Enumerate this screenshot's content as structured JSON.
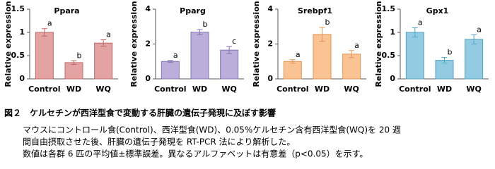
{
  "chart_data": [
    {
      "type": "bar",
      "title": "Ppara",
      "y_label": "Relative expression",
      "categories": [
        "Control",
        "WD",
        "WQ"
      ],
      "values": [
        1.0,
        0.35,
        0.77
      ],
      "errors": [
        0.08,
        0.04,
        0.07
      ],
      "annotations": [
        "a",
        "b",
        "a"
      ],
      "color": "#e3a3a3",
      "edge_color": "#c06868",
      "ylim": [
        0,
        1.5
      ],
      "yticks": [
        0,
        0.5,
        1,
        1.5
      ]
    },
    {
      "type": "bar",
      "title": "Pparg",
      "y_label": "Relative expression",
      "categories": [
        "Control",
        "WD",
        "WQ"
      ],
      "values": [
        1.0,
        2.68,
        1.65
      ],
      "errors": [
        0.06,
        0.15,
        0.2
      ],
      "annotations": [
        "a",
        "b",
        "c"
      ],
      "color": "#bcaedb",
      "edge_color": "#8674b4",
      "ylim": [
        0,
        4
      ],
      "yticks": [
        0,
        2,
        4
      ]
    },
    {
      "type": "bar",
      "title": "Srebpf1",
      "y_label": "Relative expression",
      "categories": [
        "Control",
        "WD",
        "WQ"
      ],
      "values": [
        1.0,
        2.55,
        1.42
      ],
      "errors": [
        0.1,
        0.4,
        0.2
      ],
      "annotations": [
        "a",
        "b",
        "a"
      ],
      "color": "#f9c394",
      "edge_color": "#e39454",
      "ylim": [
        0,
        4
      ],
      "yticks": [
        0,
        2,
        4
      ]
    },
    {
      "type": "bar",
      "title": "Gpx1",
      "y_label": "Relative expression",
      "categories": [
        "Control",
        "WD",
        "WQ"
      ],
      "values": [
        1.0,
        0.4,
        0.85
      ],
      "errors": [
        0.1,
        0.06,
        0.1
      ],
      "annotations": [
        "a",
        "b",
        "a"
      ],
      "color": "#93cbe2",
      "edge_color": "#53a3c3",
      "ylim": [
        0,
        1.5
      ],
      "yticks": [
        0,
        0.5,
        1,
        1.5
      ]
    }
  ],
  "caption": {
    "title": "図２　ケルセチンが西洋型食で変動する肝臓の遺伝子発現に及ぼす影響",
    "lines": [
      "マウスにコントロール食(Control)、西洋型食(WD)、0.05%ケルセチン含有西洋型食(WQ)を 20 週",
      "間自由摂取させた後、肝臓の遺伝子発現を RT-PCR 法により解析した。",
      "数値は各群 6 匹の平均値±標準誤差。異なるアルファベットは有意差（p<0.05）を示す。"
    ]
  }
}
